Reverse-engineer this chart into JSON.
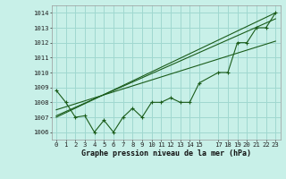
{
  "title": "Graphe pression niveau de la mer (hPa)",
  "bg_color": "#c8f0e8",
  "grid_color": "#a0d8d0",
  "line_color": "#1a5c1a",
  "marker_color": "#1a5c1a",
  "xlim": [
    -0.5,
    23.5
  ],
  "ylim": [
    1005.5,
    1014.5
  ],
  "yticks": [
    1006,
    1007,
    1008,
    1009,
    1010,
    1011,
    1012,
    1013,
    1014
  ],
  "xtick_positions": [
    0,
    1,
    2,
    3,
    4,
    5,
    6,
    7,
    8,
    9,
    10,
    11,
    12,
    13,
    14,
    15,
    17,
    18,
    19,
    20,
    21,
    22,
    23
  ],
  "xtick_labels": [
    "0",
    "1",
    "2",
    "3",
    "4",
    "5",
    "6",
    "7",
    "8",
    "9",
    "10",
    "11",
    "12",
    "13",
    "14",
    "15",
    "17",
    "18",
    "19",
    "20",
    "21",
    "22",
    "23"
  ],
  "main_data": [
    [
      0,
      1008.8
    ],
    [
      1,
      1008.0
    ],
    [
      2,
      1007.0
    ],
    [
      3,
      1007.1
    ],
    [
      4,
      1006.0
    ],
    [
      5,
      1006.8
    ],
    [
      6,
      1006.0
    ],
    [
      7,
      1007.0
    ],
    [
      8,
      1007.6
    ],
    [
      9,
      1007.0
    ],
    [
      10,
      1008.0
    ],
    [
      11,
      1008.0
    ],
    [
      12,
      1008.3
    ],
    [
      13,
      1008.0
    ],
    [
      14,
      1008.0
    ],
    [
      15,
      1009.3
    ],
    [
      17,
      1010.0
    ],
    [
      18,
      1010.0
    ],
    [
      19,
      1012.0
    ],
    [
      20,
      1012.0
    ],
    [
      21,
      1013.0
    ],
    [
      22,
      1013.0
    ],
    [
      23,
      1014.0
    ]
  ],
  "trend_line1": [
    [
      0,
      1007.1
    ],
    [
      23,
      1013.6
    ]
  ],
  "trend_line2": [
    [
      0,
      1007.0
    ],
    [
      23,
      1014.0
    ]
  ],
  "trend_line3": [
    [
      0,
      1007.5
    ],
    [
      23,
      1012.1
    ]
  ]
}
